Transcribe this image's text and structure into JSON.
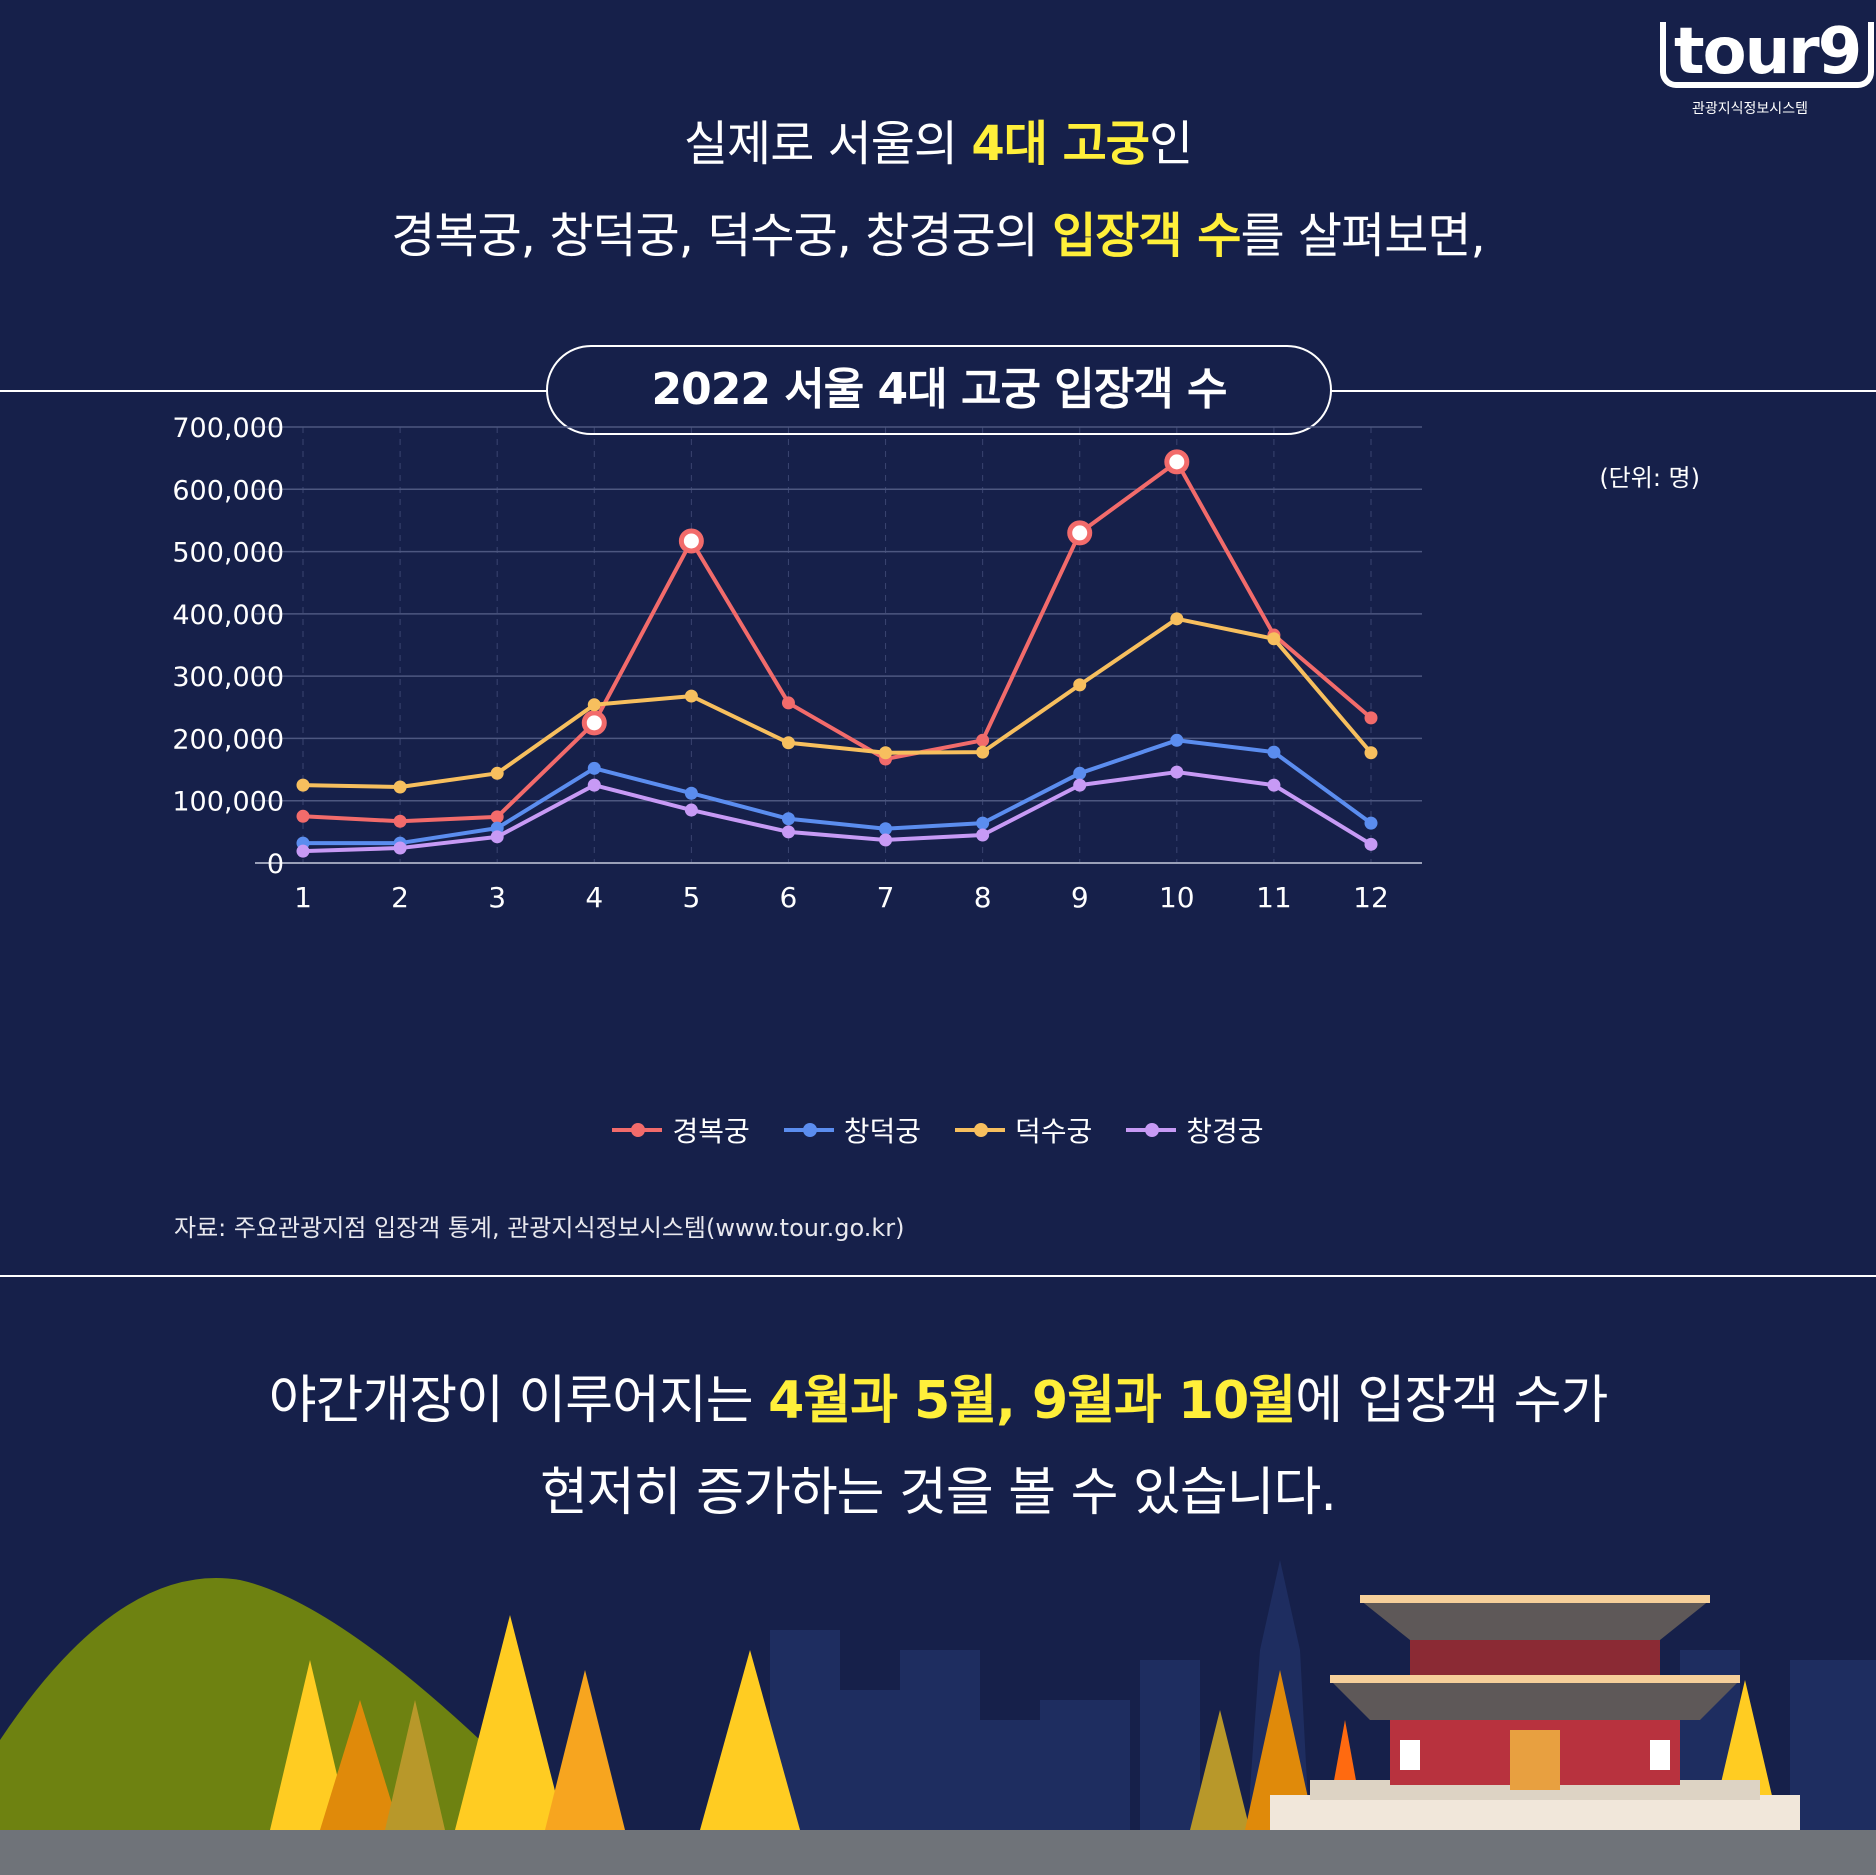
{
  "logo": {
    "word": "tour9",
    "subtitle": "관광지식정보시스템"
  },
  "headline": {
    "l1a": "실제로 서울의 ",
    "l1b": "4대 고궁",
    "l1c": "인",
    "l2a": "경복궁, 창덕궁, 덕수궁, 창경궁의 ",
    "l2b": "입장객 수",
    "l2c": "를 살펴보면,"
  },
  "chart_data": {
    "type": "line",
    "title": "2022 서울 4대 고궁 입장객 수",
    "unit": "(단위: 명)",
    "x": [
      1,
      2,
      3,
      4,
      5,
      6,
      7,
      8,
      9,
      10,
      11,
      12
    ],
    "x_tick_labels": [
      "1",
      "2",
      "3",
      "4",
      "5",
      "6",
      "7",
      "8",
      "9",
      "10",
      "11",
      "12"
    ],
    "ylim": [
      0,
      700000
    ],
    "y_ticks": [
      0,
      100000,
      200000,
      300000,
      400000,
      500000,
      600000,
      700000
    ],
    "y_tick_labels": [
      "0",
      "100,000",
      "200,000",
      "300,000",
      "400,000",
      "500,000",
      "600,000",
      "700,000"
    ],
    "grid": true,
    "legend_placement": "bottom",
    "highlighted_points": {
      "series": "경복궁",
      "x": [
        4,
        5,
        9,
        10
      ]
    },
    "series": [
      {
        "name": "경복궁",
        "color": "#f26b6b",
        "values": [
          75000,
          67000,
          74000,
          225000,
          517000,
          257000,
          167000,
          197000,
          530000,
          644000,
          366000,
          233000
        ]
      },
      {
        "name": "창덕궁",
        "color": "#5b8def",
        "values": [
          32000,
          32000,
          56000,
          152000,
          112000,
          71000,
          55000,
          64000,
          144000,
          197000,
          178000,
          64000
        ]
      },
      {
        "name": "덕수궁",
        "color": "#f7bf5e",
        "values": [
          125000,
          122000,
          144000,
          254000,
          268000,
          193000,
          177000,
          178000,
          286000,
          392000,
          360000,
          177000
        ]
      },
      {
        "name": "창경궁",
        "color": "#c79af5",
        "values": [
          19000,
          24000,
          42000,
          125000,
          85000,
          50000,
          37000,
          45000,
          125000,
          146000,
          125000,
          30000
        ]
      }
    ]
  },
  "source": "자료:  주요관광지점 입장객 통계, 관광지식정보시스템(www.tour.go.kr)",
  "bottom": {
    "l1a": "야간개장이 이루어지는 ",
    "l1b": "4월과 5월, 9월과 10월",
    "l1c": "에 입장객 수가",
    "l2": "현저히 증가하는 것을 볼 수 있습니다."
  },
  "colors": {
    "background": "#16204a",
    "highlight": "#ffef3a"
  }
}
